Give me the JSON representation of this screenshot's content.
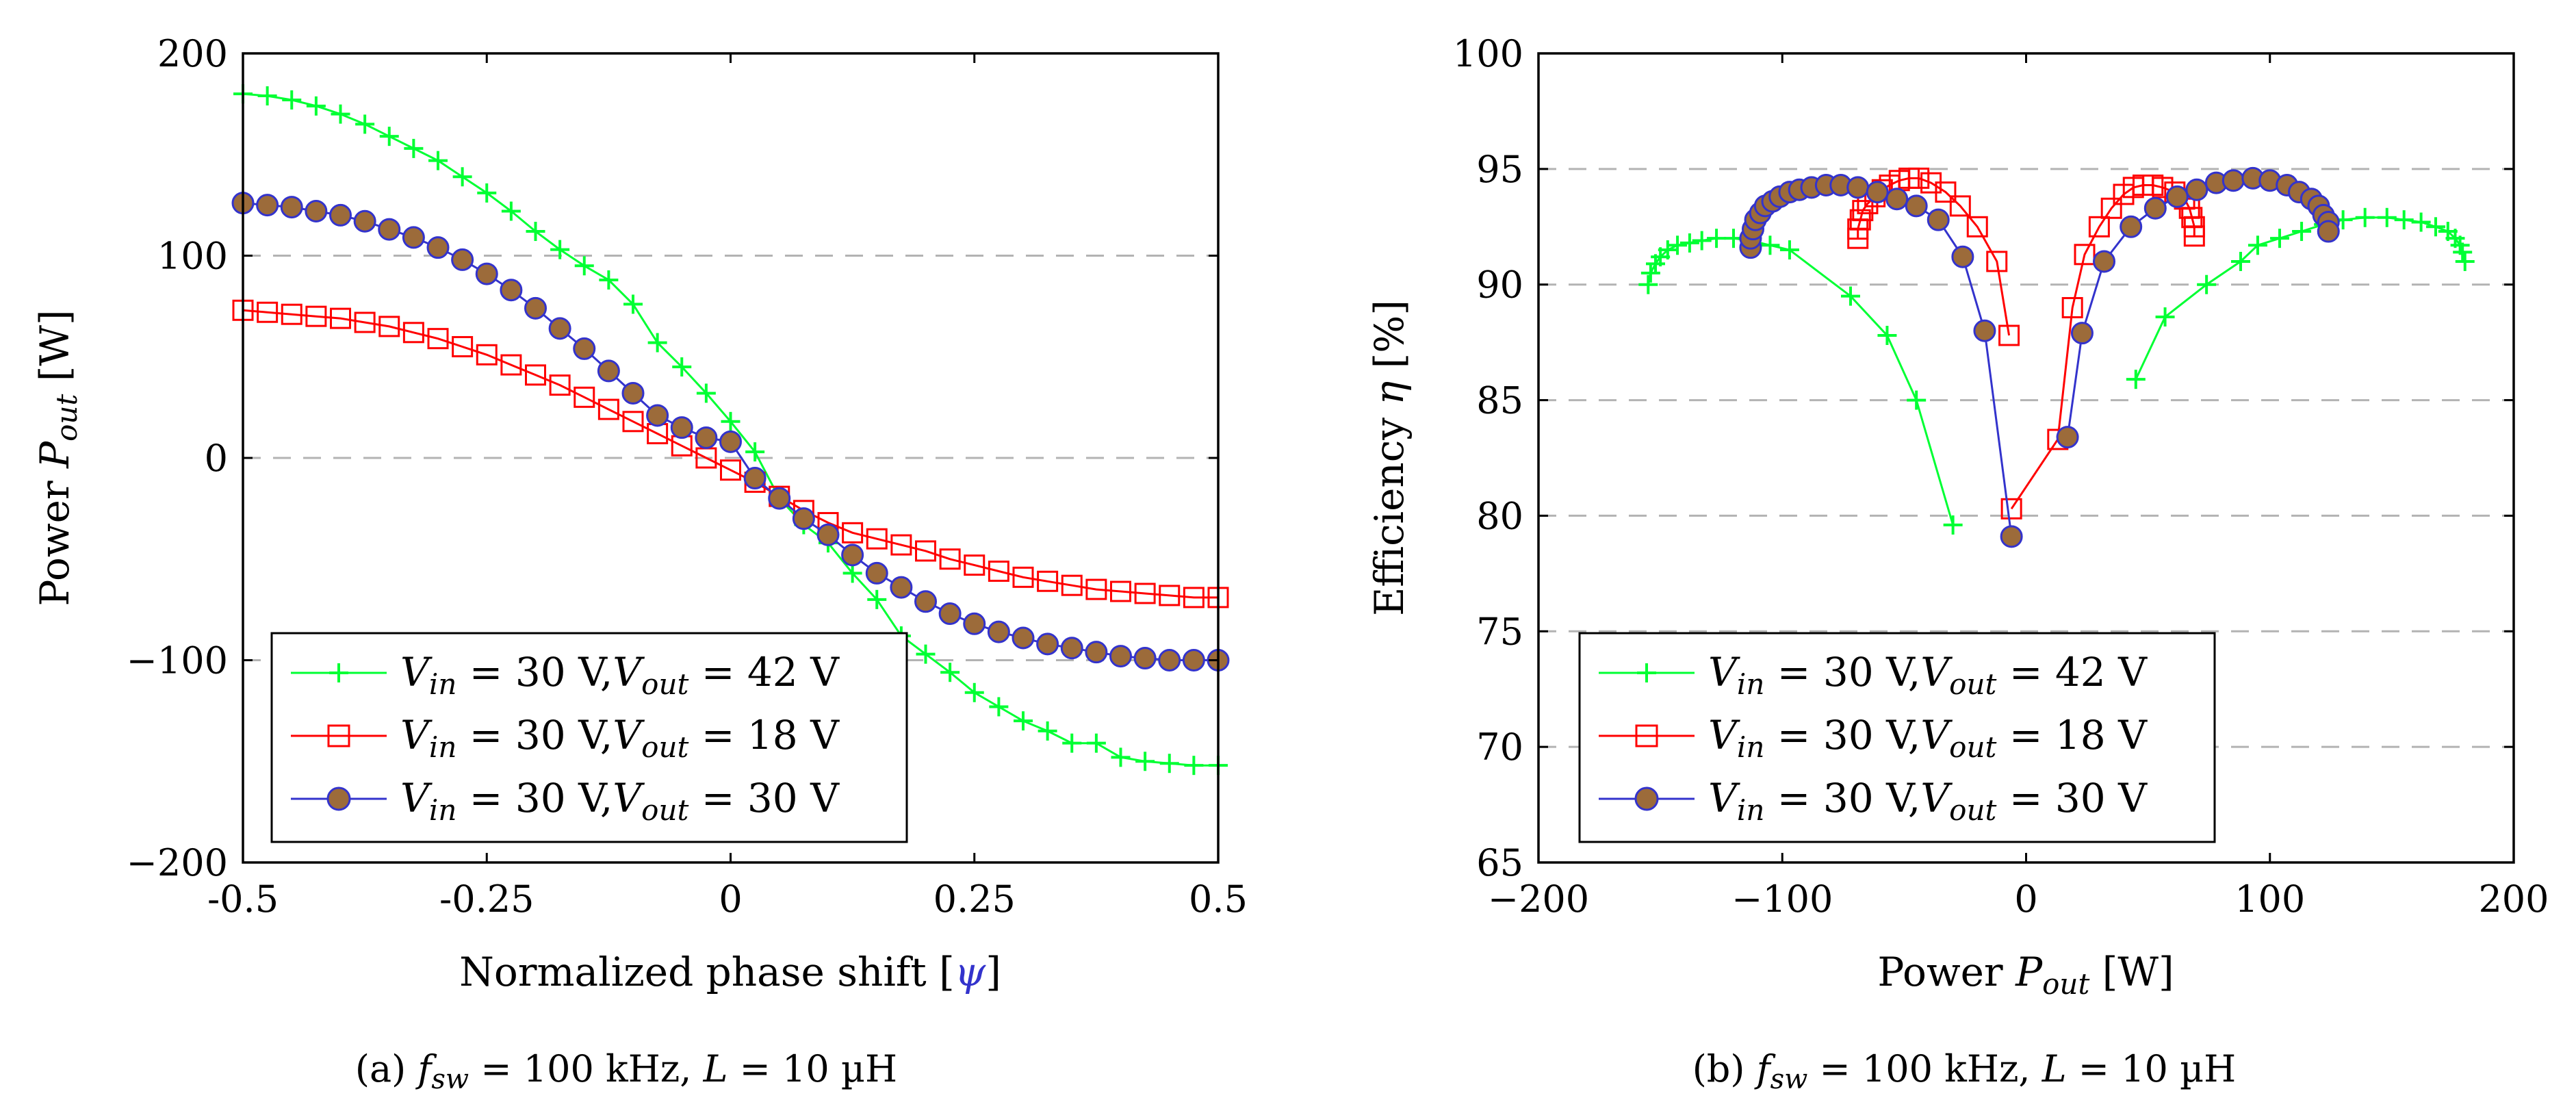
{
  "chart_data": [
    {
      "type": "line",
      "xlabel_prefix": "Normalized phase shift [",
      "xlabel_symbol": "ψ",
      "xlabel_suffix": "]",
      "ylabel_prefix": "Power ",
      "ylabel_symbol": "P",
      "ylabel_sub": "out",
      "ylabel_suffix": " [W]",
      "xlim": [
        -0.5,
        0.5
      ],
      "ylim": [
        -200,
        200
      ],
      "xticks": [
        "-0.5",
        "-0.25",
        "0",
        "0.25",
        "0.5"
      ],
      "xtick_values": [
        -0.5,
        -0.25,
        0,
        0.25,
        0.5
      ],
      "yticks": [
        "200",
        "100",
        "0",
        "−100",
        "−200"
      ],
      "ytick_values": [
        200,
        100,
        0,
        -100,
        -200
      ],
      "grid_y": [
        100,
        0,
        -100
      ],
      "legend_position": "bottom-left",
      "caption": {
        "prefix": "(a) ",
        "f": "f",
        "sub": "sw",
        "mid": " = 100 kHz, ",
        "L": "L",
        "end": " = 10 µH"
      },
      "series": [
        {
          "name": "Vin = 30 V,Vout = 42 V",
          "legend": {
            "a": "V",
            "asub": "in",
            "b": " = 30 V,",
            "c": "V",
            "csub": "out",
            "d": " = 42 V"
          },
          "color": "#00ff33",
          "marker": "plus",
          "x": [
            -0.5,
            -0.475,
            -0.45,
            -0.425,
            -0.4,
            -0.375,
            -0.35,
            -0.325,
            -0.3,
            -0.275,
            -0.25,
            -0.225,
            -0.2,
            -0.175,
            -0.15,
            -0.125,
            -0.1,
            -0.075,
            -0.05,
            -0.025,
            0,
            0.025,
            0.05,
            0.075,
            0.1,
            0.125,
            0.15,
            0.175,
            0.2,
            0.225,
            0.25,
            0.275,
            0.3,
            0.325,
            0.35,
            0.375,
            0.4,
            0.425,
            0.45,
            0.475,
            0.5
          ],
          "y": [
            180,
            179,
            177,
            174,
            170,
            165,
            159,
            153,
            147,
            139,
            131,
            122,
            112,
            103,
            95,
            88,
            76,
            57,
            45,
            32,
            18,
            3,
            -20,
            -33,
            -42,
            -57,
            -70,
            -88,
            -97,
            -106,
            -116,
            -123,
            -130,
            -135,
            -141,
            -141,
            -148,
            -150,
            -151,
            -152,
            -152
          ]
        },
        {
          "name": "Vin = 30 V,Vout = 18 V",
          "legend": {
            "a": "V",
            "asub": "in",
            "b": " = 30 V,",
            "c": "V",
            "csub": "out",
            "d": " = 18 V"
          },
          "color": "#ff0000",
          "marker": "square",
          "x": [
            -0.5,
            -0.475,
            -0.45,
            -0.425,
            -0.4,
            -0.375,
            -0.35,
            -0.325,
            -0.3,
            -0.275,
            -0.25,
            -0.225,
            -0.2,
            -0.175,
            -0.15,
            -0.125,
            -0.1,
            -0.075,
            -0.05,
            -0.025,
            0,
            0.025,
            0.05,
            0.075,
            0.1,
            0.125,
            0.15,
            0.175,
            0.2,
            0.225,
            0.25,
            0.275,
            0.3,
            0.325,
            0.35,
            0.375,
            0.4,
            0.425,
            0.45,
            0.475,
            0.5
          ],
          "y": [
            73,
            72,
            71,
            70,
            69,
            67,
            65,
            62,
            59,
            55,
            51,
            46,
            41,
            36,
            30,
            24,
            18,
            12,
            6,
            0,
            -6,
            -12,
            -19,
            -26,
            -32,
            -37,
            -40,
            -43,
            -46,
            -50,
            -53,
            -56,
            -59,
            -61,
            -63,
            -65,
            -66,
            -67,
            -68,
            -69,
            -69
          ]
        },
        {
          "name": "Vin = 30 V,Vout = 30 V",
          "legend": {
            "a": "V",
            "asub": "in",
            "b": " = 30 V,",
            "c": "V",
            "csub": "out",
            "d": " = 30 V"
          },
          "color": "#3333cc",
          "fill": "#9c6b3a",
          "marker": "circle",
          "x": [
            -0.5,
            -0.475,
            -0.45,
            -0.425,
            -0.4,
            -0.375,
            -0.35,
            -0.325,
            -0.3,
            -0.275,
            -0.25,
            -0.225,
            -0.2,
            -0.175,
            -0.15,
            -0.125,
            -0.1,
            -0.075,
            -0.05,
            -0.025,
            0,
            0.025,
            0.05,
            0.075,
            0.1,
            0.125,
            0.15,
            0.175,
            0.2,
            0.225,
            0.25,
            0.275,
            0.3,
            0.325,
            0.35,
            0.375,
            0.4,
            0.425,
            0.45,
            0.475,
            0.5
          ],
          "y": [
            126,
            125,
            124,
            122,
            120,
            117,
            113,
            109,
            104,
            98,
            91,
            83,
            74,
            64,
            54,
            43,
            32,
            21,
            15,
            10,
            8,
            -10,
            -20,
            -30,
            -38,
            -48,
            -57,
            -64,
            -71,
            -77,
            -82,
            -86,
            -89,
            -92,
            -94,
            -96,
            -98,
            -99,
            -100,
            -100,
            -100
          ]
        }
      ]
    },
    {
      "type": "line",
      "xlabel_prefix": "Power ",
      "xlabel_symbol": "P",
      "xlabel_sub": "out",
      "xlabel_suffix": " [W]",
      "ylabel_prefix": "Efficiency ",
      "ylabel_symbol": "η",
      "ylabel_suffix": " [%]",
      "xlim": [
        -200,
        200
      ],
      "ylim": [
        65,
        100
      ],
      "xticks": [
        "−200",
        "−100",
        "0",
        "100",
        "200"
      ],
      "xtick_values": [
        -200,
        -100,
        0,
        100,
        200
      ],
      "yticks": [
        "100",
        "95",
        "90",
        "85",
        "80",
        "75",
        "70",
        "65"
      ],
      "ytick_values": [
        100,
        95,
        90,
        85,
        80,
        75,
        70,
        65
      ],
      "grid_y": [
        95,
        90,
        85,
        80,
        75,
        70
      ],
      "legend_position": "bottom-left",
      "caption": {
        "prefix": "(b) ",
        "f": "f",
        "sub": "sw",
        "mid": " = 100 kHz, ",
        "L": "L",
        "end": " = 10 µH"
      },
      "series": [
        {
          "name": "Vin = 30 V,Vout = 42 V",
          "color": "#00ff33",
          "marker": "plus",
          "segments": [
            {
              "x": [
                -155,
                -154,
                -152,
                -150,
                -147,
                -143,
                -138,
                -133,
                -127,
                -120,
                -113,
                -105,
                -97,
                -72,
                -57,
                -45,
                -30
              ],
              "y": [
                90,
                90.5,
                90.9,
                91.2,
                91.5,
                91.7,
                91.8,
                91.9,
                92,
                92,
                91.9,
                91.7,
                91.5,
                89.5,
                87.8,
                85,
                79.6
              ]
            },
            {
              "x": [
                45,
                57,
                74,
                88,
                95,
                104,
                113,
                122,
                130,
                139,
                148,
                155,
                162,
                168,
                173,
                176,
                178,
                179,
                180
              ],
              "y": [
                85.9,
                88.6,
                90,
                91,
                91.7,
                92,
                92.3,
                92.6,
                92.8,
                92.9,
                92.9,
                92.8,
                92.7,
                92.5,
                92.3,
                92,
                91.7,
                91.4,
                91
              ]
            }
          ]
        },
        {
          "name": "Vin = 30 V,Vout = 18 V",
          "color": "#ff0000",
          "marker": "square",
          "segments": [
            {
              "x": [
                -69,
                -69,
                -68,
                -67,
                -65,
                -62,
                -59,
                -56,
                -52,
                -48,
                -44,
                -39,
                -33,
                -27,
                -20,
                -12,
                -7
              ],
              "y": [
                92,
                92.4,
                92.8,
                93.2,
                93.5,
                93.8,
                94.1,
                94.3,
                94.5,
                94.6,
                94.6,
                94.4,
                94,
                93.4,
                92.5,
                91,
                87.8
              ]
            },
            {
              "x": [
                -6,
                13,
                19,
                24,
                30,
                35,
                40,
                44,
                48,
                52,
                56,
                61,
                65,
                67,
                68,
                69,
                69
              ],
              "y": [
                80.3,
                83.3,
                89,
                91.3,
                92.5,
                93.3,
                93.9,
                94.2,
                94.3,
                94.3,
                94.2,
                94,
                93.7,
                93.3,
                92.9,
                92.5,
                92.1
              ]
            }
          ]
        },
        {
          "name": "Vin = 30 V,Vout = 30 V",
          "color": "#3333cc",
          "fill": "#9c6b3a",
          "marker": "circle",
          "segments": [
            {
              "x": [
                -113,
                -113,
                -112,
                -111,
                -109,
                -107,
                -104,
                -101,
                -97,
                -93,
                -88,
                -82,
                -76,
                -69,
                -61,
                -53,
                -45,
                -36,
                -26,
                -17,
                -6
              ],
              "y": [
                91.6,
                92,
                92.4,
                92.8,
                93.1,
                93.4,
                93.6,
                93.8,
                94,
                94.1,
                94.2,
                94.3,
                94.3,
                94.2,
                94,
                93.7,
                93.4,
                92.8,
                91.2,
                88,
                79.1
              ]
            },
            {
              "x": [
                17,
                23,
                32,
                43,
                53,
                62,
                70,
                78,
                85,
                93,
                100,
                107,
                112,
                117,
                120,
                122,
                124,
                124
              ],
              "y": [
                83.4,
                87.9,
                91,
                92.5,
                93.3,
                93.8,
                94.1,
                94.4,
                94.5,
                94.6,
                94.5,
                94.3,
                94,
                93.7,
                93.4,
                93,
                92.7,
                92.3
              ]
            }
          ]
        }
      ]
    }
  ]
}
